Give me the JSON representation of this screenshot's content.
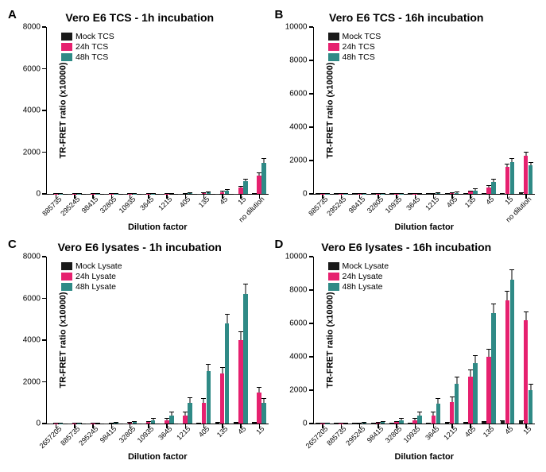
{
  "colors": {
    "mock": "#1a1a1a",
    "24h": "#e6216f",
    "48h": "#2f8a86",
    "axis": "#000000",
    "background": "#ffffff"
  },
  "font": {
    "family": "Arial",
    "title_size": 14,
    "label_size": 11,
    "tick_size": 10,
    "legend_size": 10.5
  },
  "panels": [
    {
      "letter": "A",
      "title": "Vero E6 TCS - 1h incubation",
      "ylabel": "TR-FRET ratio (x10000)",
      "xlabel": "Dilution factor",
      "ymax": 8000,
      "ytick_step": 2000,
      "categories": [
        "885735",
        "295245",
        "98415",
        "32805",
        "10935",
        "3645",
        "1215",
        "405",
        "135",
        "45",
        "15",
        "no dilution"
      ],
      "series": [
        {
          "name": "Mock TCS",
          "key": "mock",
          "values": [
            10,
            10,
            10,
            10,
            10,
            10,
            10,
            10,
            10,
            10,
            10,
            20
          ],
          "err": [
            10,
            10,
            10,
            10,
            10,
            10,
            10,
            10,
            10,
            10,
            10,
            15
          ]
        },
        {
          "name": "24h TCS",
          "key": "24h",
          "values": [
            15,
            15,
            15,
            15,
            15,
            15,
            15,
            20,
            30,
            80,
            300,
            880
          ],
          "err": [
            15,
            15,
            15,
            15,
            15,
            15,
            15,
            15,
            20,
            40,
            80,
            120
          ]
        },
        {
          "name": "48h TCS",
          "key": "48h",
          "values": [
            15,
            15,
            15,
            15,
            15,
            15,
            20,
            30,
            60,
            150,
            600,
            1500
          ],
          "err": [
            15,
            15,
            15,
            15,
            15,
            15,
            15,
            20,
            30,
            60,
            120,
            200
          ]
        }
      ]
    },
    {
      "letter": "B",
      "title": "Vero E6 TCS - 16h incubation",
      "ylabel": "TR-FRET ratio (x10000)",
      "xlabel": "Dilution factor",
      "ymax": 10000,
      "ytick_step": 2000,
      "categories": [
        "885735",
        "295245",
        "98415",
        "32805",
        "10935",
        "3645",
        "1215",
        "405",
        "135",
        "45",
        "15",
        "no dilution"
      ],
      "series": [
        {
          "name": "Mock TCS",
          "key": "mock",
          "values": [
            15,
            15,
            15,
            15,
            15,
            15,
            15,
            15,
            15,
            15,
            20,
            30
          ],
          "err": [
            15,
            15,
            15,
            15,
            15,
            15,
            15,
            15,
            15,
            15,
            15,
            20
          ]
        },
        {
          "name": "24h TCS",
          "key": "24h",
          "values": [
            20,
            20,
            20,
            20,
            20,
            20,
            25,
            40,
            120,
            400,
            1600,
            2300
          ],
          "err": [
            20,
            20,
            20,
            20,
            20,
            20,
            20,
            30,
            60,
            120,
            200,
            220
          ]
        },
        {
          "name": "48h TCS",
          "key": "48h",
          "values": [
            20,
            20,
            20,
            20,
            20,
            25,
            30,
            60,
            200,
            700,
            1900,
            1700
          ],
          "err": [
            20,
            20,
            20,
            20,
            20,
            20,
            20,
            40,
            100,
            180,
            220,
            200
          ]
        }
      ]
    },
    {
      "letter": "C",
      "title": "Vero E6 lysates - 1h incubation",
      "ylabel": "TR-FRET ratio (x10000)",
      "xlabel": "Dilution factor",
      "ymax": 8000,
      "ytick_step": 2000,
      "categories": [
        "2657205",
        "885735",
        "295245",
        "98415",
        "32805",
        "10935",
        "3645",
        "1215",
        "405",
        "135",
        "45",
        "15"
      ],
      "series": [
        {
          "name": "Mock Lysate",
          "key": "mock",
          "values": [
            10,
            10,
            10,
            10,
            10,
            10,
            10,
            15,
            20,
            30,
            40,
            40
          ],
          "err": [
            10,
            10,
            10,
            10,
            10,
            10,
            10,
            10,
            15,
            20,
            25,
            25
          ]
        },
        {
          "name": "24h Lysate",
          "key": "24h",
          "values": [
            15,
            15,
            15,
            20,
            30,
            60,
            150,
            400,
            1000,
            2400,
            4000,
            1500
          ],
          "err": [
            15,
            15,
            15,
            15,
            20,
            40,
            80,
            150,
            200,
            300,
            400,
            250
          ]
        },
        {
          "name": "48h Lysate",
          "key": "48h",
          "values": [
            15,
            15,
            20,
            30,
            60,
            150,
            400,
            1000,
            2500,
            4800,
            6200,
            1000
          ],
          "err": [
            15,
            15,
            15,
            20,
            40,
            80,
            150,
            250,
            350,
            450,
            500,
            200
          ]
        }
      ]
    },
    {
      "letter": "D",
      "title": "Vero E6 lysates - 16h incubation",
      "ylabel": "TR-FRET ratio (x10000)",
      "xlabel": "Dilution factor",
      "ymax": 10000,
      "ytick_step": 2000,
      "categories": [
        "2657205",
        "885735",
        "295245",
        "98415",
        "32805",
        "10935",
        "3645",
        "1215",
        "405",
        "135",
        "45",
        "15"
      ],
      "series": [
        {
          "name": "Mock Lysate",
          "key": "mock",
          "values": [
            15,
            15,
            15,
            15,
            15,
            15,
            20,
            30,
            50,
            80,
            120,
            120
          ],
          "err": [
            15,
            15,
            15,
            15,
            15,
            15,
            15,
            20,
            30,
            40,
            50,
            50
          ]
        },
        {
          "name": "24h Lysate",
          "key": "24h",
          "values": [
            20,
            20,
            25,
            40,
            80,
            200,
            500,
            1300,
            2800,
            4000,
            7400,
            6200
          ],
          "err": [
            20,
            20,
            20,
            30,
            50,
            100,
            180,
            300,
            400,
            450,
            550,
            500
          ]
        },
        {
          "name": "48h Lysate",
          "key": "48h",
          "values": [
            20,
            25,
            40,
            80,
            200,
            500,
            1200,
            2400,
            3600,
            6600,
            8600,
            2000
          ],
          "err": [
            20,
            20,
            30,
            50,
            100,
            180,
            280,
            400,
            450,
            550,
            600,
            350
          ]
        }
      ]
    }
  ]
}
